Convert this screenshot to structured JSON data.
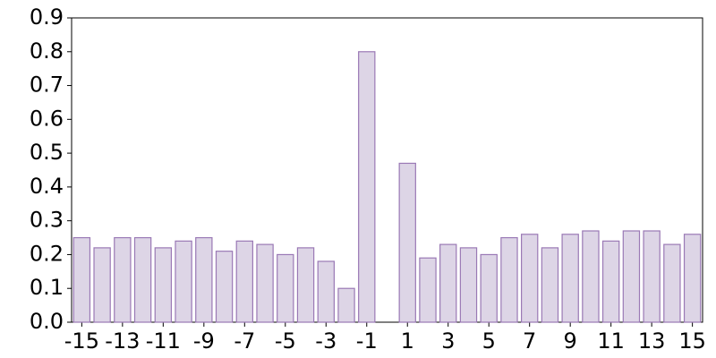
{
  "chart_data": {
    "type": "bar",
    "x": [
      -15,
      -14,
      -13,
      -12,
      -11,
      -10,
      -9,
      -8,
      -7,
      -6,
      -5,
      -4,
      -3,
      -2,
      -1,
      1,
      2,
      3,
      4,
      5,
      6,
      7,
      8,
      9,
      10,
      11,
      12,
      13,
      14,
      15
    ],
    "values": [
      0.25,
      0.22,
      0.25,
      0.25,
      0.22,
      0.24,
      0.25,
      0.21,
      0.24,
      0.23,
      0.2,
      0.22,
      0.18,
      0.1,
      0.8,
      0.47,
      0.19,
      0.23,
      0.22,
      0.2,
      0.25,
      0.26,
      0.22,
      0.26,
      0.27,
      0.24,
      0.27,
      0.27,
      0.23,
      0.26
    ],
    "color": "#ddd5e6",
    "edgecolor": "#9a79b5",
    "xlim": [
      -15.5,
      15.5
    ],
    "xticks": [
      -15,
      -13,
      -11,
      -9,
      -7,
      -5,
      -3,
      -1,
      1,
      3,
      5,
      7,
      9,
      11,
      13,
      15
    ],
    "ylim": [
      0,
      0.9
    ],
    "yticks": [
      {
        "value": 0,
        "label": "0.0"
      },
      0.1,
      0.2,
      0.3,
      0.4,
      0.5,
      0.6,
      0.7,
      0.8,
      0.9
    ]
  }
}
